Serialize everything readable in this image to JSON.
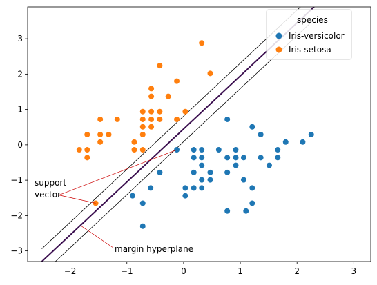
{
  "chart_data": {
    "type": "scatter",
    "title": "",
    "xlabel": "",
    "ylabel": "",
    "xlim": [
      -2.75,
      3.3
    ],
    "ylim": [
      -3.3,
      3.9
    ],
    "xticks": [
      -2,
      -1,
      0,
      1,
      2,
      3
    ],
    "yticks": [
      -3,
      -2,
      -1,
      0,
      1,
      2,
      3
    ],
    "xtick_labels": [
      "−2",
      "−1",
      "0",
      "1",
      "2",
      "3"
    ],
    "ytick_labels": [
      "−3",
      "−2",
      "−1",
      "0",
      "1",
      "2",
      "3"
    ],
    "grid": false,
    "legend": {
      "title": "species",
      "placement": "top-right",
      "entries": [
        {
          "label": "Iris-versicolor",
          "color": "#1f77b4"
        },
        {
          "label": "Iris-setosa",
          "color": "#ff7f0e"
        }
      ]
    },
    "series": [
      {
        "name": "Iris-versicolor",
        "color": "#1f77b4",
        "points": [
          [
            -0.9,
            -1.44
          ],
          [
            -0.72,
            -1.65
          ],
          [
            -0.72,
            -2.3
          ],
          [
            -0.58,
            -1.22
          ],
          [
            -0.42,
            -0.78
          ],
          [
            -0.12,
            -0.14
          ],
          [
            0.03,
            -1.22
          ],
          [
            0.03,
            -1.44
          ],
          [
            0.18,
            -0.14
          ],
          [
            0.18,
            -0.36
          ],
          [
            0.18,
            -0.78
          ],
          [
            0.18,
            -1.22
          ],
          [
            0.32,
            -0.14
          ],
          [
            0.32,
            -0.36
          ],
          [
            0.32,
            -0.58
          ],
          [
            0.32,
            -0.99
          ],
          [
            0.32,
            -1.22
          ],
          [
            0.47,
            -0.78
          ],
          [
            0.47,
            -0.99
          ],
          [
            0.62,
            -0.14
          ],
          [
            0.77,
            0.72
          ],
          [
            0.77,
            -0.36
          ],
          [
            0.77,
            -0.78
          ],
          [
            0.77,
            -1.87
          ],
          [
            0.92,
            -0.14
          ],
          [
            0.92,
            -0.36
          ],
          [
            0.92,
            -0.58
          ],
          [
            1.06,
            -0.36
          ],
          [
            1.06,
            -0.99
          ],
          [
            1.1,
            -1.87
          ],
          [
            1.21,
            0.51
          ],
          [
            1.21,
            -1.22
          ],
          [
            1.21,
            -1.65
          ],
          [
            1.36,
            0.29
          ],
          [
            1.36,
            -0.36
          ],
          [
            1.51,
            -0.58
          ],
          [
            1.66,
            -0.14
          ],
          [
            1.66,
            -0.36
          ],
          [
            1.8,
            0.08
          ],
          [
            2.1,
            0.08
          ],
          [
            2.25,
            0.29
          ]
        ]
      },
      {
        "name": "Iris-setosa",
        "color": "#ff7f0e",
        "points": [
          [
            -1.84,
            -0.14
          ],
          [
            -1.7,
            -0.14
          ],
          [
            -1.7,
            -0.36
          ],
          [
            -1.7,
            0.29
          ],
          [
            -1.55,
            -1.65
          ],
          [
            -1.47,
            0.72
          ],
          [
            -1.47,
            0.29
          ],
          [
            -1.47,
            0.08
          ],
          [
            -1.32,
            0.29
          ],
          [
            -1.17,
            0.72
          ],
          [
            -0.87,
            0.08
          ],
          [
            -0.87,
            -0.14
          ],
          [
            -0.72,
            0.94
          ],
          [
            -0.72,
            0.72
          ],
          [
            -0.72,
            0.51
          ],
          [
            -0.72,
            0.29
          ],
          [
            -0.72,
            -0.14
          ],
          [
            -0.57,
            1.37
          ],
          [
            -0.57,
            1.59
          ],
          [
            -0.57,
            0.94
          ],
          [
            -0.57,
            0.72
          ],
          [
            -0.57,
            0.51
          ],
          [
            -0.42,
            2.24
          ],
          [
            -0.42,
            0.94
          ],
          [
            -0.42,
            0.72
          ],
          [
            -0.27,
            1.37
          ],
          [
            -0.12,
            1.8
          ],
          [
            -0.12,
            0.72
          ],
          [
            0.03,
            0.94
          ],
          [
            0.32,
            2.88
          ],
          [
            0.47,
            2.02
          ]
        ]
      }
    ],
    "decision_boundary": {
      "x0": -2.5,
      "y0": -3.3,
      "x1": 2.3,
      "y1": 3.9
    },
    "margin_offset_y": 0.36,
    "annotations": [
      {
        "text": "support",
        "id": "support-line1"
      },
      {
        "text": "vector",
        "id": "support-line2"
      },
      {
        "text": "margin hyperplane",
        "id": "margin"
      }
    ],
    "support_vectors": [
      [
        -0.12,
        -0.14
      ],
      [
        -1.55,
        -1.65
      ]
    ],
    "support_label_anchor": [
      -2.2,
      -1.42
    ],
    "margin_label_anchor": [
      -1.25,
      -2.9
    ],
    "margin_point": [
      -1.8,
      -2.3
    ]
  }
}
